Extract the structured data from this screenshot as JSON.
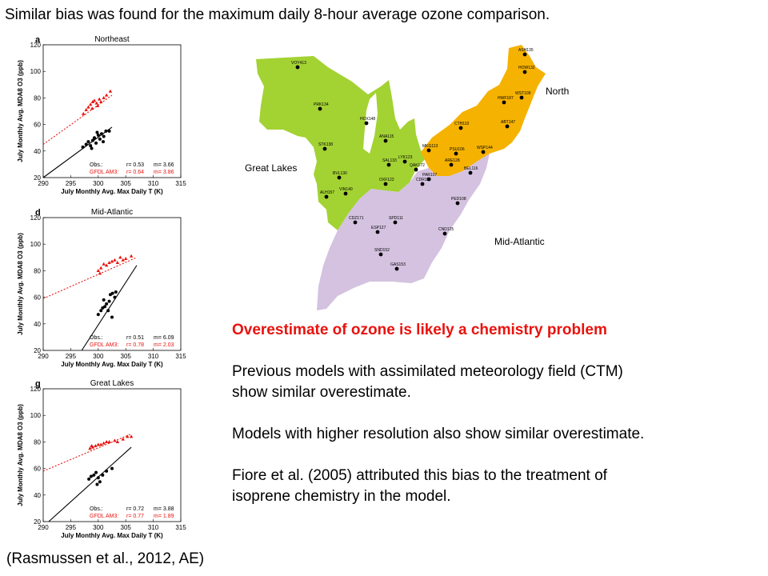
{
  "slide": {
    "title": "Similar bias was found for the maximum daily 8-hour average ozone comparison.",
    "citation": "(Rasmussen et al., 2012, AE)",
    "heading": "Overestimate of ozone is likely a chemistry problem",
    "paragraphs": [
      "Previous models with assimilated meteorology field (CTM)",
      "show similar overestimate.",
      "Models with higher resolution also show similar overestimate.",
      "Fiore et al. (2005) attributed this bias to the treatment of",
      "isoprene chemistry in the model."
    ],
    "colors": {
      "heading": "#e8130e",
      "obs": "#000000",
      "model": "#e8130e"
    }
  },
  "chart_data": [
    {
      "type": "scatter",
      "panel_letter": "a",
      "title": "Northeast",
      "xlabel": "July Monthly Avg. Max Daily T (K)",
      "ylabel": "July Monthly Avg. MDA8 O3 (ppb)",
      "xlim": [
        290,
        315
      ],
      "ylim": [
        20,
        120
      ],
      "xticks": [
        290,
        295,
        300,
        305,
        310,
        315
      ],
      "yticks": [
        20,
        40,
        60,
        80,
        100,
        120
      ],
      "stats": [
        {
          "label": "Obs.:",
          "r": "r=  0.53",
          "m": "m=  3.66",
          "color": "#000000"
        },
        {
          "label": "GFDL AM3:",
          "r": "r=  0.64",
          "m": "m=  3.86",
          "color": "#e8130e"
        }
      ],
      "series": [
        {
          "marker": "circle",
          "color": "#000000",
          "points": [
            [
              297.2,
              43
            ],
            [
              297.8,
              45
            ],
            [
              298.2,
              47
            ],
            [
              298.6,
              44
            ],
            [
              299,
              48
            ],
            [
              299.3,
              50
            ],
            [
              299.6,
              46
            ],
            [
              300,
              52
            ],
            [
              300.3,
              49
            ],
            [
              300.6,
              53
            ],
            [
              301,
              51
            ],
            [
              301.4,
              55
            ],
            [
              302,
              55
            ],
            [
              298.8,
              42
            ],
            [
              299.8,
              54
            ],
            [
              300.9,
              47
            ]
          ],
          "fit": [
            [
              290,
              20
            ],
            [
              302.5,
              58
            ]
          ]
        },
        {
          "marker": "triangle",
          "color": "#e8130e",
          "points": [
            [
              297.3,
              68
            ],
            [
              297.8,
              71
            ],
            [
              298.2,
              73
            ],
            [
              298.6,
              75
            ],
            [
              299,
              77
            ],
            [
              299.3,
              78
            ],
            [
              299.7,
              76
            ],
            [
              300.2,
              79
            ],
            [
              300.5,
              77
            ],
            [
              301,
              80
            ],
            [
              301.5,
              82
            ],
            [
              302.2,
              85
            ],
            [
              298.9,
              72
            ],
            [
              299.9,
              74
            ]
          ],
          "fit": [
            [
              290,
              45
            ],
            [
              302.5,
              82
            ]
          ]
        }
      ]
    },
    {
      "type": "scatter",
      "panel_letter": "d",
      "title": "Mid-Atlantic",
      "xlabel": "July Monthly Avg. Max Daily T (K)",
      "ylabel": "July Monthly Avg. MDA8 O3 (ppb)",
      "xlim": [
        290,
        315
      ],
      "ylim": [
        20,
        120
      ],
      "xticks": [
        290,
        295,
        300,
        305,
        310,
        315
      ],
      "yticks": [
        20,
        40,
        60,
        80,
        100,
        120
      ],
      "stats": [
        {
          "label": "Obs.:",
          "r": "r=  0.51",
          "m": "m=  6.09",
          "color": "#000000"
        },
        {
          "label": "GFDL AM3:",
          "r": "r=  0.78",
          "m": "m=  2.03",
          "color": "#e8130e"
        }
      ],
      "series": [
        {
          "marker": "circle",
          "color": "#000000",
          "points": [
            [
              300,
              47
            ],
            [
              300.5,
              50
            ],
            [
              300.8,
              52
            ],
            [
              301.2,
              53
            ],
            [
              301.5,
              55
            ],
            [
              302,
              57
            ],
            [
              302.2,
              62
            ],
            [
              302.6,
              63
            ],
            [
              303,
              60
            ],
            [
              303.2,
              64
            ],
            [
              301.8,
              50
            ],
            [
              302.5,
              45
            ],
            [
              301,
              58
            ]
          ],
          "fit": [
            [
              297,
              20
            ],
            [
              307,
              84
            ]
          ]
        },
        {
          "marker": "triangle",
          "color": "#e8130e",
          "points": [
            [
              300,
              80
            ],
            [
              300.5,
              82
            ],
            [
              301,
              85
            ],
            [
              301.5,
              84
            ],
            [
              302,
              86
            ],
            [
              302.5,
              87
            ],
            [
              303,
              88
            ],
            [
              303.5,
              86
            ],
            [
              304,
              90
            ],
            [
              304.5,
              88
            ],
            [
              305,
              89
            ],
            [
              306,
              91
            ],
            [
              300.3,
              78
            ]
          ],
          "fit": [
            [
              290,
              59
            ],
            [
              307,
              90
            ]
          ]
        }
      ]
    },
    {
      "type": "scatter",
      "panel_letter": "g",
      "title": "Great Lakes",
      "xlabel": "July Monthly Avg. Max Daily T (K)",
      "ylabel": "July Monthly Avg. MDA8 O3 (ppb)",
      "xlim": [
        290,
        315
      ],
      "ylim": [
        20,
        120
      ],
      "xticks": [
        290,
        295,
        300,
        305,
        310,
        315
      ],
      "yticks": [
        20,
        40,
        60,
        80,
        100,
        120
      ],
      "stats": [
        {
          "label": "Obs.:",
          "r": "r=  0.72",
          "m": "m=  3.88",
          "color": "#000000"
        },
        {
          "label": "GFDL AM3:",
          "r": "r=  0.77",
          "m": "m=  1.89",
          "color": "#e8130e"
        }
      ],
      "series": [
        {
          "marker": "circle",
          "color": "#000000",
          "points": [
            [
              298.3,
              52
            ],
            [
              298.7,
              54
            ],
            [
              299.2,
              55
            ],
            [
              299.6,
              57
            ],
            [
              300,
              53
            ],
            [
              300.3,
              50
            ],
            [
              300.8,
              55
            ],
            [
              301.5,
              58
            ],
            [
              302.5,
              60
            ],
            [
              299.8,
              48
            ]
          ],
          "fit": [
            [
              291,
              20
            ],
            [
              306,
              76
            ]
          ]
        },
        {
          "marker": "triangle",
          "color": "#e8130e",
          "points": [
            [
              298.5,
              75
            ],
            [
              299,
              76
            ],
            [
              299.5,
              77
            ],
            [
              300,
              78
            ],
            [
              300.5,
              78
            ],
            [
              301,
              79
            ],
            [
              301.5,
              80
            ],
            [
              302,
              80
            ],
            [
              303,
              81
            ],
            [
              303.5,
              80
            ],
            [
              304.5,
              82
            ],
            [
              305.3,
              84
            ],
            [
              306,
              84
            ],
            [
              298.8,
              77
            ]
          ],
          "fit": [
            [
              290,
              58
            ],
            [
              306,
              86
            ]
          ]
        }
      ]
    }
  ],
  "map": {
    "region_labels": {
      "northeast": "Northeast",
      "great_lakes": "Great Lakes",
      "mid_atlantic": "Mid-Atlantic"
    },
    "colors": {
      "great_lakes": "#a3d233",
      "northeast": "#f5b200",
      "mid_atlantic": "#d4c2e0",
      "site": "#000000"
    },
    "sites": [
      {
        "id": "VOY413"
      },
      {
        "id": "ASH135"
      },
      {
        "id": "HOW132"
      },
      {
        "id": "PRK134"
      },
      {
        "id": "HOX148"
      },
      {
        "id": "HWF187"
      },
      {
        "id": "WST109"
      },
      {
        "id": "ANA115"
      },
      {
        "id": "CTH110"
      },
      {
        "id": "ABT147"
      },
      {
        "id": "STK138"
      },
      {
        "id": "MKG113"
      },
      {
        "id": "PSU106"
      },
      {
        "id": "WSP144"
      },
      {
        "id": "LYK123"
      },
      {
        "id": "SAL133"
      },
      {
        "id": "QAK172"
      },
      {
        "id": "ARE128"
      },
      {
        "id": "BEL116"
      },
      {
        "id": "PAR107"
      },
      {
        "id": "CDR119"
      },
      {
        "id": "BVL130"
      },
      {
        "id": "OXF122"
      },
      {
        "id": "ALH157"
      },
      {
        "id": "VIN140"
      },
      {
        "id": "PED108"
      },
      {
        "id": "CDZ171"
      },
      {
        "id": "SPD111"
      },
      {
        "id": "ESP127"
      },
      {
        "id": "CND125"
      },
      {
        "id": "SND152"
      },
      {
        "id": "GAS153"
      }
    ]
  }
}
